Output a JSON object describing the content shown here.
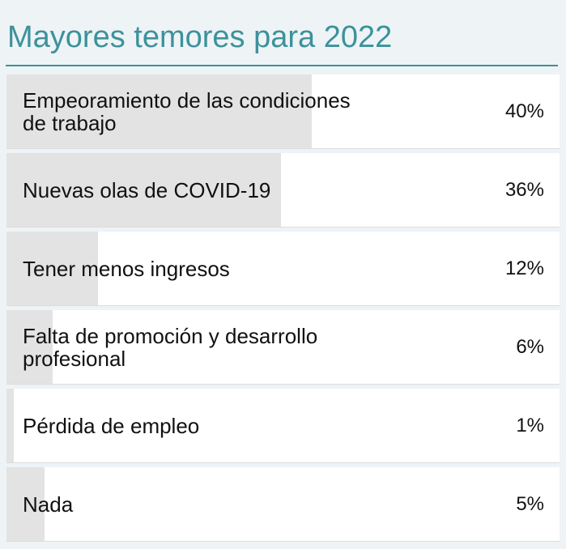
{
  "chart_data": {
    "type": "bar",
    "title": "Mayores temores para 2022",
    "categories": [
      "Empeoramiento de las condiciones\nde trabajo",
      "Nuevas olas de COVID-19",
      "Tener menos ingresos",
      "Falta de promoción y desarrollo\nprofesional",
      "Pérdida de empleo",
      "Nada"
    ],
    "values": [
      40,
      36,
      12,
      6,
      1,
      5
    ],
    "value_labels": [
      "40%",
      "36%",
      "12%",
      "6%",
      "1%",
      "5%"
    ],
    "unit": "%",
    "xlim": [
      0,
      100
    ],
    "orientation": "horizontal",
    "grid": false,
    "legend": "none",
    "colors": {
      "title": "#3c929b",
      "bar_fill": "#e3e3e3",
      "row_background": "#ffffff",
      "page_background": "#eef3f6"
    }
  }
}
